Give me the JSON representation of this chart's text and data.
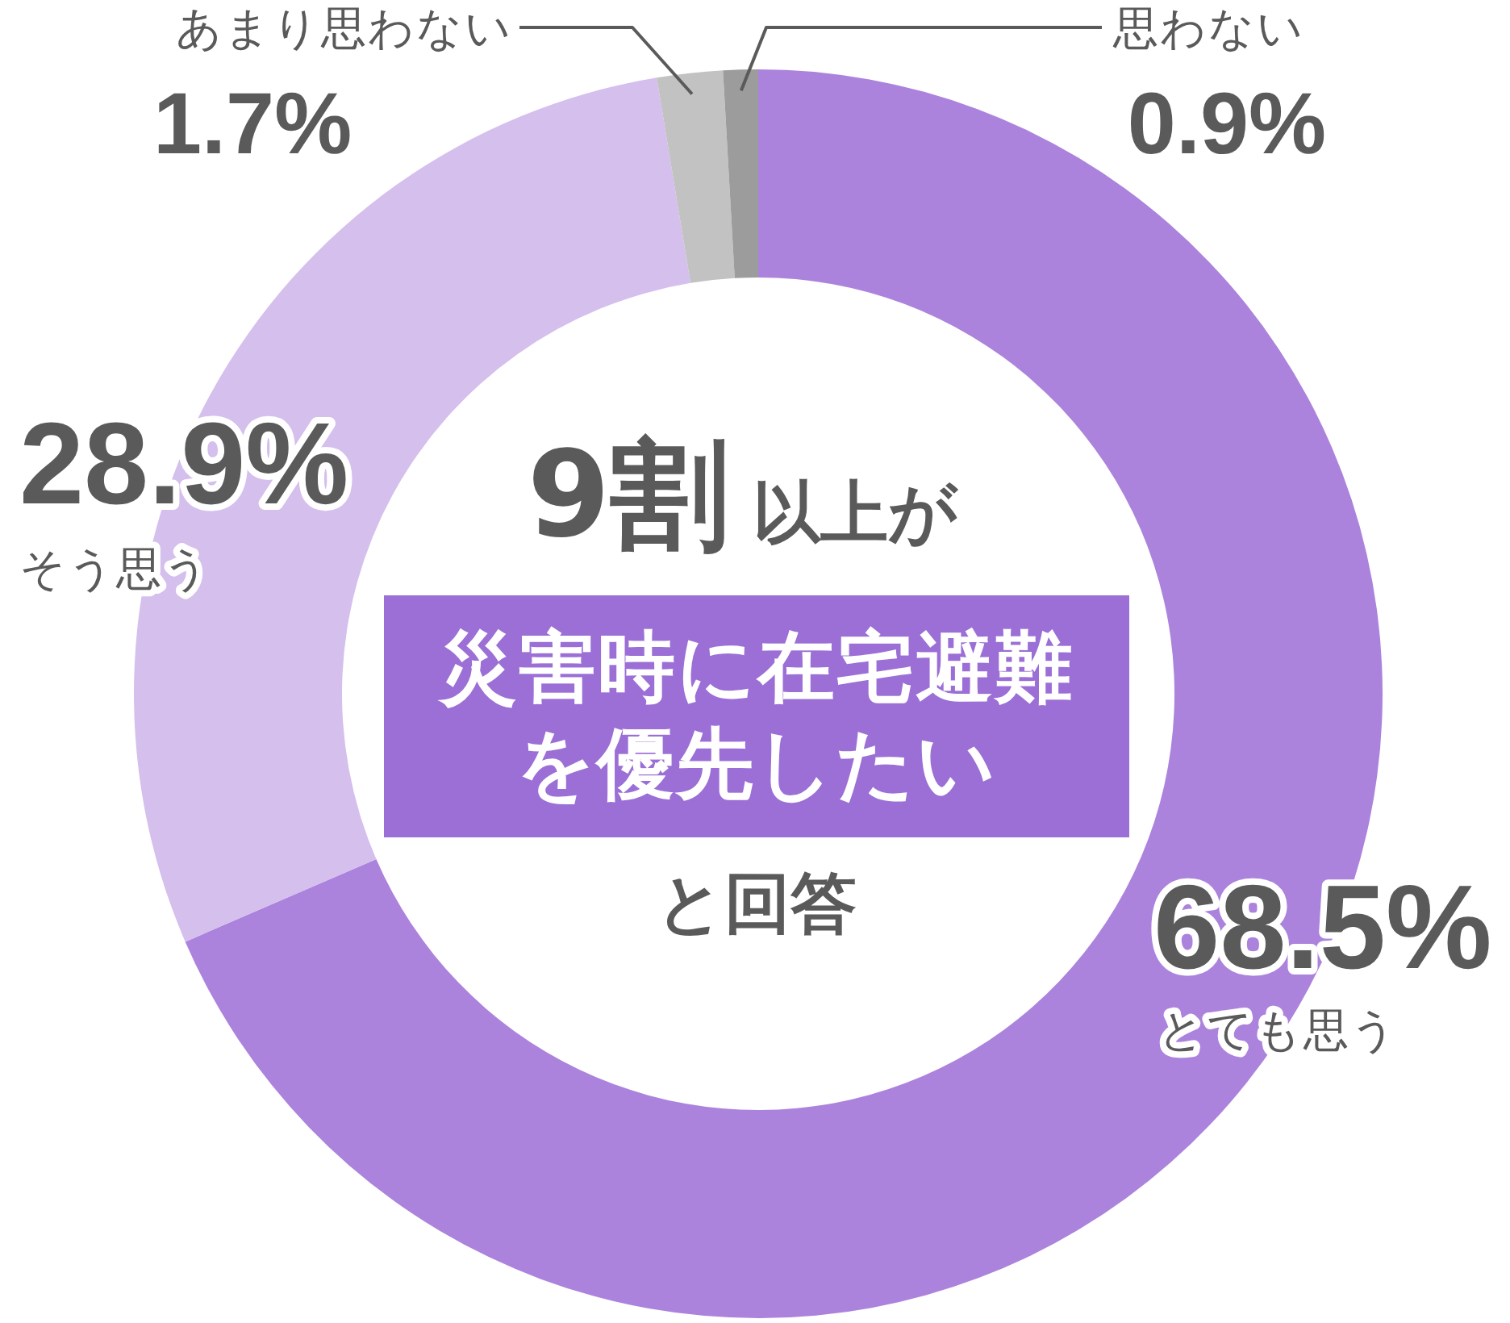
{
  "chart_data": {
    "type": "donut",
    "categories": [
      "とても思う",
      "そう思う",
      "あまり思わない",
      "思わない"
    ],
    "values": [
      68.5,
      28.9,
      1.7,
      0.9
    ],
    "colors": [
      "#ac83dc",
      "#d4bfed",
      "#c2c2c2",
      "#9c9c9c"
    ],
    "value_labels": [
      "68.5%",
      "28.9%",
      "1.7%",
      "0.9%"
    ],
    "annotations": [
      "9割",
      "以上が",
      "災害時に在宅避難を優先したい",
      "と回答"
    ]
  }
}
